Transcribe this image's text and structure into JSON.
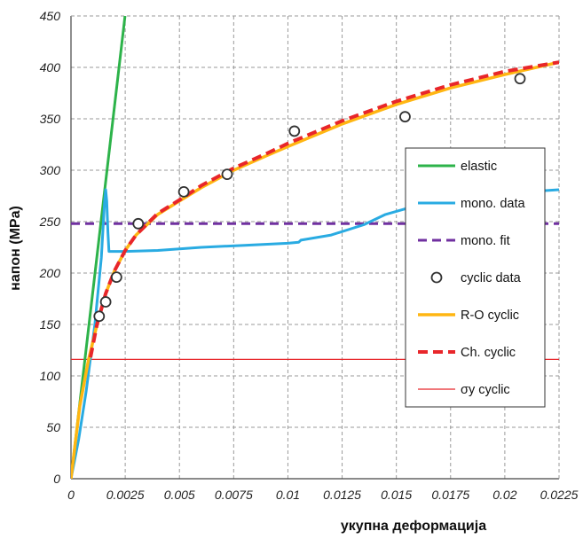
{
  "chart_data": {
    "type": "line",
    "title": "",
    "xlabel": "укупна деформација",
    "ylabel": "напон (MPa)",
    "xlim": [
      0,
      0.0225
    ],
    "ylim": [
      0,
      450
    ],
    "x_ticks": [
      0,
      0.0025,
      0.005,
      0.0075,
      0.01,
      0.0125,
      0.015,
      0.0175,
      0.02,
      0.0225
    ],
    "x_tick_labels": [
      "0",
      "0.0025",
      "0.005",
      "0.0075",
      "0.01",
      "0.0125",
      "0.015",
      "0.0175",
      "0.02",
      "0.0225"
    ],
    "y_ticks": [
      0,
      50,
      100,
      150,
      200,
      250,
      300,
      350,
      400,
      450
    ],
    "y_tick_labels": [
      "0",
      "50",
      "100",
      "150",
      "200",
      "250",
      "300",
      "350",
      "400",
      "450"
    ],
    "grid": true,
    "legend_position": "right",
    "series": [
      {
        "name": "elastic",
        "style": "solid",
        "color": "#2db34a",
        "points": [
          [
            0,
            0
          ],
          [
            0.00249,
            450
          ]
        ]
      },
      {
        "name": "mono. data",
        "style": "solid",
        "color": "#29abe2",
        "points": [
          [
            0,
            0
          ],
          [
            0.00035,
            38
          ],
          [
            0.0007,
            85
          ],
          [
            0.0011,
            150
          ],
          [
            0.0014,
            215
          ],
          [
            0.00155,
            270
          ],
          [
            0.0016,
            281
          ],
          [
            0.00165,
            270
          ],
          [
            0.0017,
            240
          ],
          [
            0.00175,
            221
          ],
          [
            0.0025,
            221
          ],
          [
            0.004,
            222
          ],
          [
            0.006,
            225
          ],
          [
            0.008,
            227
          ],
          [
            0.01,
            229
          ],
          [
            0.0105,
            230
          ],
          [
            0.0106,
            232
          ],
          [
            0.012,
            237
          ],
          [
            0.0135,
            247
          ],
          [
            0.0145,
            257
          ],
          [
            0.0155,
            263
          ],
          [
            0.017,
            270
          ],
          [
            0.019,
            276
          ],
          [
            0.021,
            279
          ],
          [
            0.0225,
            281
          ]
        ]
      },
      {
        "name": "mono. fit",
        "style": "dashed",
        "color": "#7030a0",
        "points": [
          [
            0,
            248
          ],
          [
            0.0225,
            248
          ]
        ]
      },
      {
        "name": "cyclic data",
        "style": "markers",
        "color": "#333333",
        "points": [
          [
            0.0013,
            158
          ],
          [
            0.0016,
            172
          ],
          [
            0.0021,
            196
          ],
          [
            0.0031,
            248
          ],
          [
            0.0052,
            279
          ],
          [
            0.0072,
            296
          ],
          [
            0.0103,
            338
          ],
          [
            0.0154,
            352
          ],
          [
            0.0207,
            389
          ]
        ]
      },
      {
        "name": "R-O cyclic",
        "style": "solid",
        "color": "#ffb612",
        "points": [
          [
            0,
            0
          ],
          [
            0.0004,
            70
          ],
          [
            0.0008,
            115
          ],
          [
            0.0012,
            150
          ],
          [
            0.0016,
            180
          ],
          [
            0.002,
            202
          ],
          [
            0.0025,
            222
          ],
          [
            0.003,
            237
          ],
          [
            0.004,
            257
          ],
          [
            0.005,
            270
          ],
          [
            0.006,
            283
          ],
          [
            0.0075,
            300
          ],
          [
            0.009,
            314
          ],
          [
            0.01,
            323
          ],
          [
            0.0125,
            345
          ],
          [
            0.015,
            364
          ],
          [
            0.0175,
            380
          ],
          [
            0.02,
            393
          ],
          [
            0.0225,
            405
          ]
        ]
      },
      {
        "name": "Ch. cyclic",
        "style": "dashed",
        "color": "#e8262a",
        "points": [
          [
            0.0009,
            118
          ],
          [
            0.0012,
            150
          ],
          [
            0.0016,
            180
          ],
          [
            0.002,
            202
          ],
          [
            0.0025,
            222
          ],
          [
            0.003,
            237
          ],
          [
            0.004,
            258
          ],
          [
            0.005,
            271
          ],
          [
            0.006,
            285
          ],
          [
            0.0075,
            302
          ],
          [
            0.009,
            316
          ],
          [
            0.01,
            326
          ],
          [
            0.0125,
            348
          ],
          [
            0.015,
            367
          ],
          [
            0.0175,
            383
          ],
          [
            0.02,
            396
          ],
          [
            0.0225,
            405
          ]
        ]
      },
      {
        "name": "σy cyclic",
        "style": "solid-thin",
        "color": "#e8262a",
        "points": [
          [
            0,
            116
          ],
          [
            0.0225,
            116
          ]
        ]
      }
    ]
  }
}
